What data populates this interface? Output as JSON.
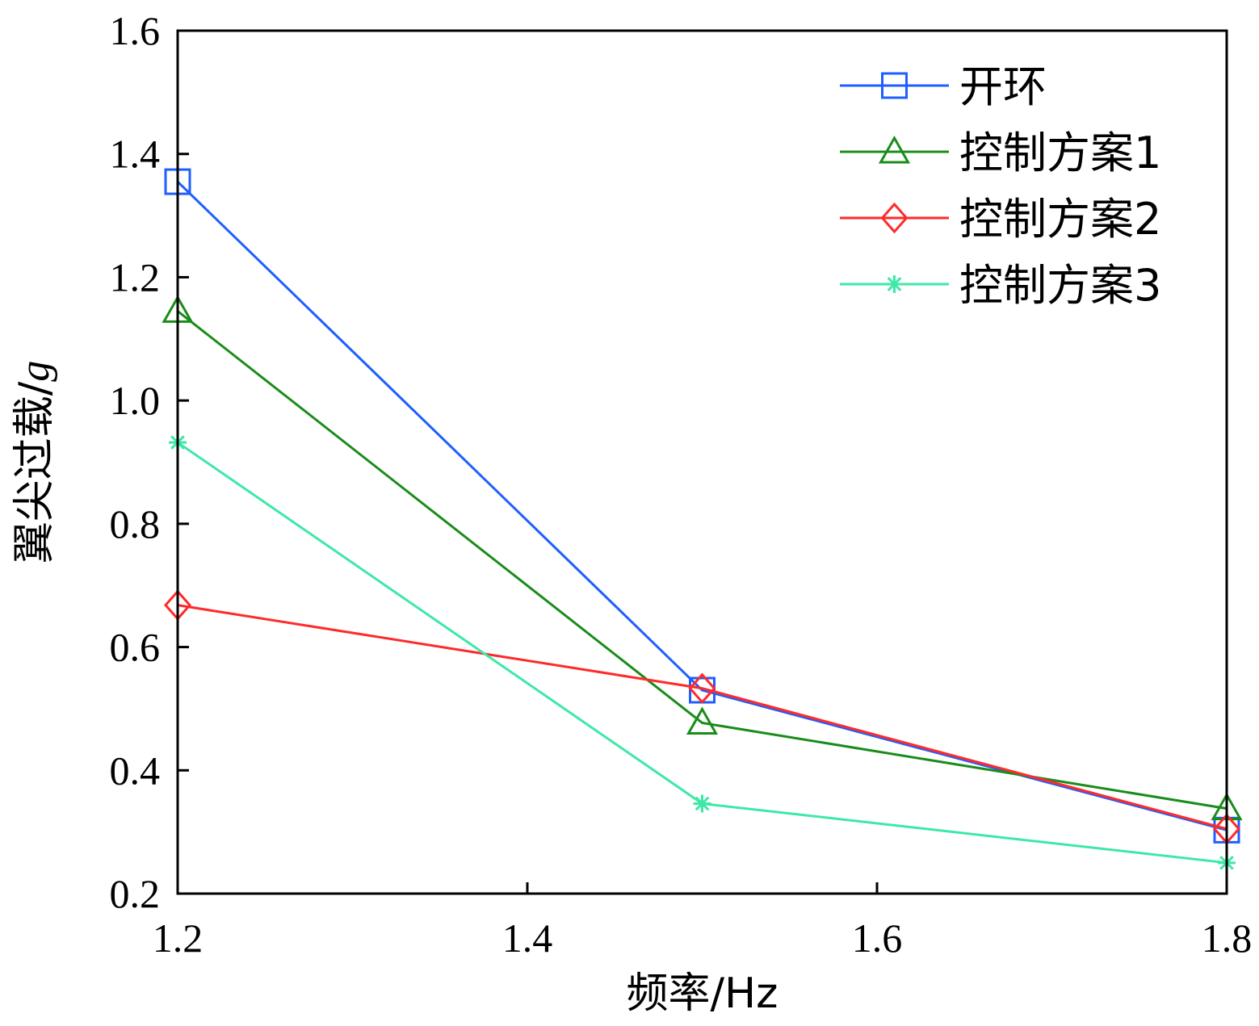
{
  "chart_data": {
    "type": "line",
    "xlabel": "频率/Hz",
    "ylabel_prefix": "翼尖过载/",
    "ylabel_unit": "g",
    "xlim": [
      1.2,
      1.8
    ],
    "ylim": [
      0.2,
      1.6
    ],
    "x_ticks": [
      "1.2",
      "1.4",
      "1.6",
      "1.8"
    ],
    "y_ticks": [
      "0.2",
      "0.4",
      "0.6",
      "0.8",
      "1.0",
      "1.2",
      "1.4",
      "1.6"
    ],
    "x": [
      1.2,
      1.5,
      1.8
    ],
    "series": [
      {
        "name": "开环",
        "marker": "square",
        "color": "#1f5eff",
        "values": [
          1.355,
          0.53,
          0.303
        ]
      },
      {
        "name": "控制方案1",
        "marker": "triangle",
        "color": "#1a8c1a",
        "values": [
          1.145,
          0.477,
          0.338
        ]
      },
      {
        "name": "控制方案2",
        "marker": "diamond",
        "color": "#ff2a2a",
        "values": [
          0.668,
          0.533,
          0.305
        ]
      },
      {
        "name": "控制方案3",
        "marker": "star",
        "color": "#3de8a8",
        "values": [
          0.932,
          0.346,
          0.25
        ]
      }
    ],
    "legend_position": "top-right",
    "grid": false
  }
}
